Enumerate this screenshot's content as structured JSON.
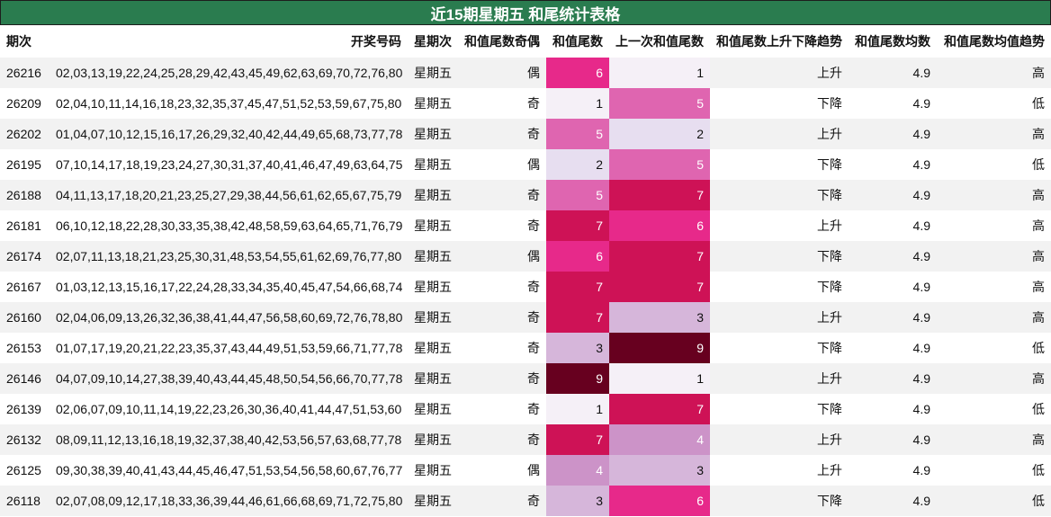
{
  "title": "近15期星期五 和尾统计表格",
  "headers": {
    "period": "期次",
    "numbers": "开奖号码",
    "weekday": "星期次",
    "parity": "和值尾数奇偶",
    "tail": "和值尾数",
    "prev_tail": "上一次和值尾数",
    "trend": "和值尾数上升下降趋势",
    "avg": "和值尾数均数",
    "avg_trend": "和值尾数均值趋势"
  },
  "heat_colors": {
    "1": "#f5f0f7",
    "2": "#e7def0",
    "3": "#d6b6da",
    "4": "#cc93c8",
    "5": "#df65b0",
    "6": "#e7298a",
    "7": "#ce1256",
    "9": "#67001f"
  },
  "rows": [
    {
      "period": "26216",
      "numbers": "02,03,13,19,22,24,25,28,29,42,43,45,49,62,63,69,70,72,76,80",
      "weekday": "星期五",
      "parity": "偶",
      "tail": "6",
      "prev_tail": "1",
      "trend": "上升",
      "avg": "4.9",
      "avg_trend": "高"
    },
    {
      "period": "26209",
      "numbers": "02,04,10,11,14,16,18,23,32,35,37,45,47,51,52,53,59,67,75,80",
      "weekday": "星期五",
      "parity": "奇",
      "tail": "1",
      "prev_tail": "5",
      "trend": "下降",
      "avg": "4.9",
      "avg_trend": "低"
    },
    {
      "period": "26202",
      "numbers": "01,04,07,10,12,15,16,17,26,29,32,40,42,44,49,65,68,73,77,78",
      "weekday": "星期五",
      "parity": "奇",
      "tail": "5",
      "prev_tail": "2",
      "trend": "上升",
      "avg": "4.9",
      "avg_trend": "高"
    },
    {
      "period": "26195",
      "numbers": "07,10,14,17,18,19,23,24,27,30,31,37,40,41,46,47,49,63,64,75",
      "weekday": "星期五",
      "parity": "偶",
      "tail": "2",
      "prev_tail": "5",
      "trend": "下降",
      "avg": "4.9",
      "avg_trend": "低"
    },
    {
      "period": "26188",
      "numbers": "04,11,13,17,18,20,21,23,25,27,29,38,44,56,61,62,65,67,75,79",
      "weekday": "星期五",
      "parity": "奇",
      "tail": "5",
      "prev_tail": "7",
      "trend": "下降",
      "avg": "4.9",
      "avg_trend": "高"
    },
    {
      "period": "26181",
      "numbers": "06,10,12,18,22,28,30,33,35,38,42,48,58,59,63,64,65,71,76,79",
      "weekday": "星期五",
      "parity": "奇",
      "tail": "7",
      "prev_tail": "6",
      "trend": "上升",
      "avg": "4.9",
      "avg_trend": "高"
    },
    {
      "period": "26174",
      "numbers": "02,07,11,13,18,21,23,25,30,31,48,53,54,55,61,62,69,76,77,80",
      "weekday": "星期五",
      "parity": "偶",
      "tail": "6",
      "prev_tail": "7",
      "trend": "下降",
      "avg": "4.9",
      "avg_trend": "高"
    },
    {
      "period": "26167",
      "numbers": "01,03,12,13,15,16,17,22,24,28,33,34,35,40,45,47,54,66,68,74",
      "weekday": "星期五",
      "parity": "奇",
      "tail": "7",
      "prev_tail": "7",
      "trend": "下降",
      "avg": "4.9",
      "avg_trend": "高"
    },
    {
      "period": "26160",
      "numbers": "02,04,06,09,13,26,32,36,38,41,44,47,56,58,60,69,72,76,78,80",
      "weekday": "星期五",
      "parity": "奇",
      "tail": "7",
      "prev_tail": "3",
      "trend": "上升",
      "avg": "4.9",
      "avg_trend": "高"
    },
    {
      "period": "26153",
      "numbers": "01,07,17,19,20,21,22,23,35,37,43,44,49,51,53,59,66,71,77,78",
      "weekday": "星期五",
      "parity": "奇",
      "tail": "3",
      "prev_tail": "9",
      "trend": "下降",
      "avg": "4.9",
      "avg_trend": "低"
    },
    {
      "period": "26146",
      "numbers": "04,07,09,10,14,27,38,39,40,43,44,45,48,50,54,56,66,70,77,78",
      "weekday": "星期五",
      "parity": "奇",
      "tail": "9",
      "prev_tail": "1",
      "trend": "上升",
      "avg": "4.9",
      "avg_trend": "高"
    },
    {
      "period": "26139",
      "numbers": "02,06,07,09,10,11,14,19,22,23,26,30,36,40,41,44,47,51,53,60",
      "weekday": "星期五",
      "parity": "奇",
      "tail": "1",
      "prev_tail": "7",
      "trend": "下降",
      "avg": "4.9",
      "avg_trend": "低"
    },
    {
      "period": "26132",
      "numbers": "08,09,11,12,13,16,18,19,32,37,38,40,42,53,56,57,63,68,77,78",
      "weekday": "星期五",
      "parity": "奇",
      "tail": "7",
      "prev_tail": "4",
      "trend": "上升",
      "avg": "4.9",
      "avg_trend": "高"
    },
    {
      "period": "26125",
      "numbers": "09,30,38,39,40,41,43,44,45,46,47,51,53,54,56,58,60,67,76,77",
      "weekday": "星期五",
      "parity": "偶",
      "tail": "4",
      "prev_tail": "3",
      "trend": "上升",
      "avg": "4.9",
      "avg_trend": "低"
    },
    {
      "period": "26118",
      "numbers": "02,07,08,09,12,17,18,33,36,39,44,46,61,66,68,69,71,72,75,80",
      "weekday": "星期五",
      "parity": "奇",
      "tail": "3",
      "prev_tail": "6",
      "trend": "下降",
      "avg": "4.9",
      "avg_trend": "低"
    }
  ]
}
